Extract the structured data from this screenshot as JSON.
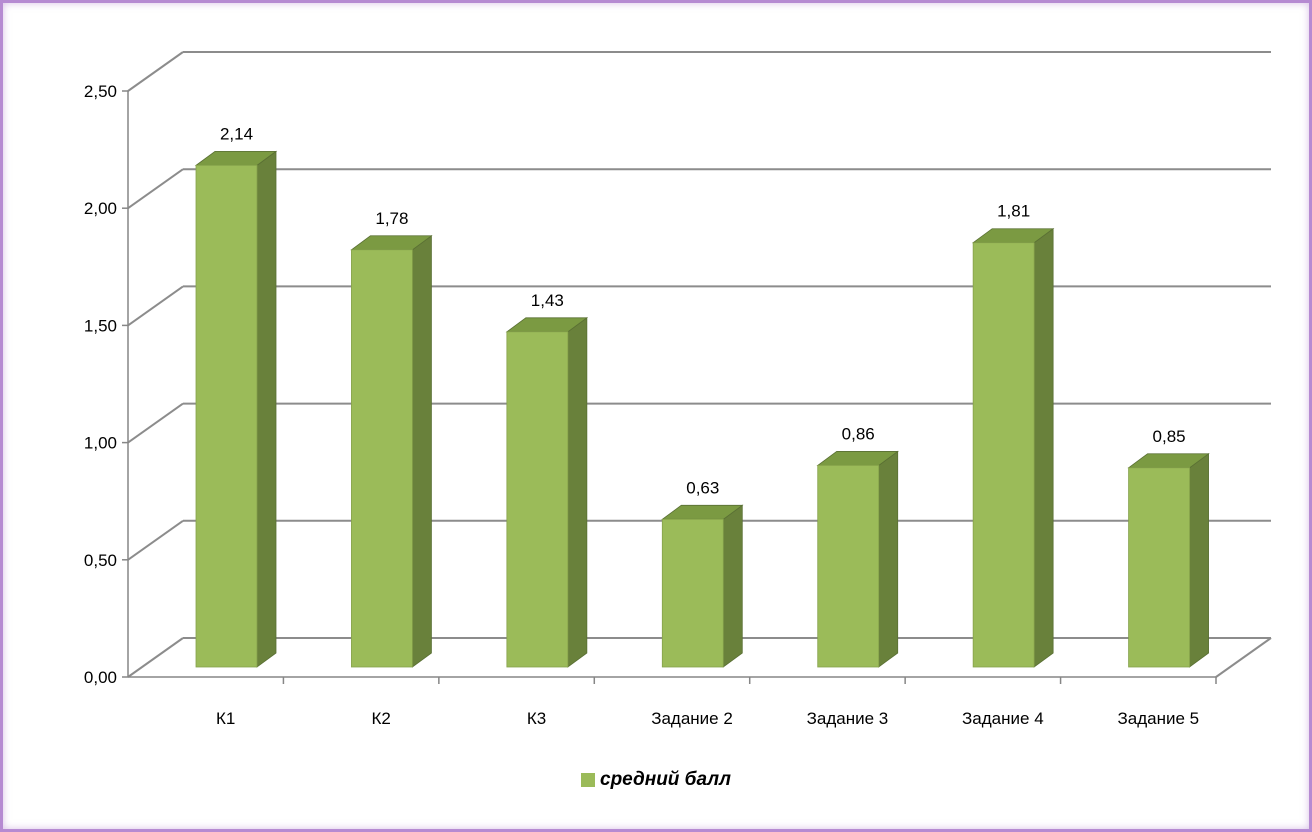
{
  "chart_data": {
    "type": "bar",
    "categories": [
      "К1",
      "К2",
      "К3",
      "Задание 2",
      "Задание 3",
      "Задание 4",
      "Задание 5"
    ],
    "series": [
      {
        "name": "средний балл",
        "values": [
          2.14,
          1.78,
          1.43,
          0.63,
          0.86,
          1.81,
          0.85
        ]
      }
    ],
    "value_labels": [
      "2,14",
      "1,78",
      "1,43",
      "0,63",
      "0,86",
      "1,81",
      "0,85"
    ],
    "y_ticks": [
      "0,00",
      "0,50",
      "1,00",
      "1,50",
      "2,00",
      "2,50"
    ],
    "ylim": [
      0,
      2.5
    ],
    "grid": true,
    "legend_position": "bottom",
    "three_d": true,
    "colors": {
      "bar_front": "#9bbb59",
      "bar_side": "#69813b",
      "bar_top": "#7b9a42",
      "grid": "#8c8c8c",
      "axis": "#868686",
      "frame": "#b68ad2"
    }
  }
}
